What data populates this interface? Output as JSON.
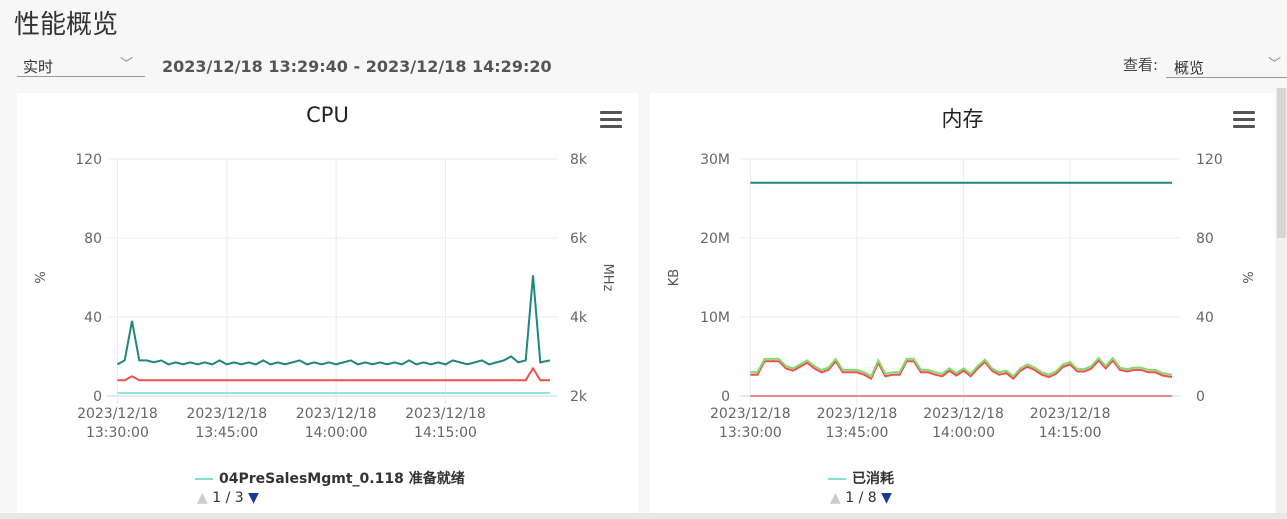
{
  "page": {
    "title": "性能概览",
    "mode_select": "实时",
    "time_range": "2023/12/18 13:29:40 - 2023/12/18 14:29:20",
    "view_label": "查看:",
    "view_select": "概览"
  },
  "icons": {
    "dropdown": "chevron-down-icon",
    "menu": "hamburger-menu-icon"
  },
  "chart_data": [
    {
      "type": "line",
      "title": "CPU",
      "ylabel": "%",
      "y2label": "MHz",
      "ylim": [
        0,
        120
      ],
      "y2lim": [
        2000,
        8000
      ],
      "yticks": [
        "0",
        "40",
        "80",
        "120"
      ],
      "y2ticks": [
        "2k",
        "4k",
        "6k",
        "8k"
      ],
      "xticks": [
        [
          "2023/12/18",
          "13:30:00"
        ],
        [
          "2023/12/18",
          "13:45:00"
        ],
        [
          "2023/12/18",
          "14:00:00"
        ],
        [
          "2023/12/18",
          "14:15:00"
        ]
      ],
      "xtick_times": [
        "13:30",
        "13:45",
        "14:00",
        "14:15"
      ],
      "xrange": [
        "13:29:40",
        "14:29:20"
      ],
      "x": [
        "13:30",
        "13:31",
        "13:32",
        "13:33",
        "13:34",
        "13:35",
        "13:36",
        "13:37",
        "13:38",
        "13:39",
        "13:40",
        "13:41",
        "13:42",
        "13:43",
        "13:44",
        "13:45",
        "13:46",
        "13:47",
        "13:48",
        "13:49",
        "13:50",
        "13:51",
        "13:52",
        "13:53",
        "13:54",
        "13:55",
        "13:56",
        "13:57",
        "13:58",
        "13:59",
        "14:00",
        "14:01",
        "14:02",
        "14:03",
        "14:04",
        "14:05",
        "14:06",
        "14:07",
        "14:08",
        "14:09",
        "14:10",
        "14:11",
        "14:12",
        "14:13",
        "14:14",
        "14:15",
        "14:16",
        "14:17",
        "14:18",
        "14:19",
        "14:20",
        "14:21",
        "14:22",
        "14:23",
        "14:24",
        "14:25",
        "14:26",
        "14:27",
        "14:28",
        "14:29"
      ],
      "series": [
        {
          "color": "#21877a",
          "values": [
            16,
            18,
            38,
            18,
            18,
            17,
            18,
            16,
            17,
            16,
            17,
            16,
            17,
            16,
            18,
            16,
            17,
            16,
            17,
            16,
            18,
            16,
            17,
            16,
            17,
            18,
            16,
            17,
            16,
            17,
            16,
            17,
            18,
            16,
            17,
            16,
            17,
            16,
            17,
            16,
            18,
            16,
            17,
            16,
            17,
            16,
            18,
            17,
            16,
            17,
            18,
            16,
            17,
            18,
            20,
            17,
            18,
            61,
            17,
            18
          ]
        },
        {
          "color": "#f04f4f",
          "values": [
            8,
            8,
            10,
            8,
            8,
            8,
            8,
            8,
            8,
            8,
            8,
            8,
            8,
            8,
            8,
            8,
            8,
            8,
            8,
            8,
            8,
            8,
            8,
            8,
            8,
            8,
            8,
            8,
            8,
            8,
            8,
            8,
            8,
            8,
            8,
            8,
            8,
            8,
            8,
            8,
            8,
            8,
            8,
            8,
            8,
            8,
            8,
            8,
            8,
            8,
            8,
            8,
            8,
            8,
            8,
            8,
            8,
            14,
            8,
            8
          ]
        },
        {
          "color": "#8fe6da",
          "values": [
            1.5,
            1.5,
            1.5,
            1.5,
            1.5,
            1.5,
            1.5,
            1.5,
            1.5,
            1.5,
            1.5,
            1.5,
            1.5,
            1.5,
            1.5,
            1.5,
            1.5,
            1.5,
            1.5,
            1.5,
            1.5,
            1.5,
            1.5,
            1.5,
            1.5,
            1.5,
            1.5,
            1.5,
            1.5,
            1.5,
            1.5,
            1.5,
            1.5,
            1.5,
            1.5,
            1.5,
            1.5,
            1.5,
            1.5,
            1.5,
            1.5,
            1.5,
            1.5,
            1.5,
            1.5,
            1.5,
            1.5,
            1.5,
            1.5,
            1.5,
            1.5,
            1.5,
            1.5,
            1.5,
            1.5,
            1.5,
            1.5,
            1.5,
            1.5,
            1.5
          ]
        }
      ],
      "legend": {
        "label": "04PreSalesMgmt_0.118 准备就绪",
        "color": "#7fe3d3",
        "page": "1 / 3"
      }
    },
    {
      "type": "line",
      "title": "内存",
      "ylabel": "KB",
      "y2label": "%",
      "ylim": [
        0,
        30000000
      ],
      "y2lim": [
        0,
        120
      ],
      "yticks": [
        "0",
        "10M",
        "20M",
        "30M"
      ],
      "y2ticks": [
        "0",
        "40",
        "80",
        "120"
      ],
      "xticks": [
        [
          "2023/12/18",
          "13:30:00"
        ],
        [
          "2023/12/18",
          "13:45:00"
        ],
        [
          "2023/12/18",
          "14:00:00"
        ],
        [
          "2023/12/18",
          "14:15:00"
        ]
      ],
      "xtick_times": [
        "13:30",
        "13:45",
        "14:00",
        "14:15"
      ],
      "xrange": [
        "13:29:40",
        "14:29:20"
      ],
      "series": [
        {
          "color": "#21877a",
          "values_M": [
            27,
            27,
            27,
            27,
            27,
            27,
            27,
            27,
            27,
            27,
            27,
            27,
            27,
            27,
            27,
            27,
            27,
            27,
            27,
            27,
            27,
            27,
            27,
            27,
            27,
            27,
            27,
            27,
            27,
            27,
            27,
            27,
            27,
            27,
            27,
            27,
            27,
            27,
            27,
            27,
            27,
            27,
            27,
            27,
            27,
            27,
            27,
            27,
            27,
            27,
            27,
            27,
            27,
            27,
            27,
            27,
            27,
            27,
            27,
            27
          ]
        },
        {
          "color": "#7fdc6a",
          "values_M": [
            3,
            3,
            4.7,
            4.7,
            4.7,
            3.8,
            3.5,
            4,
            4.5,
            3.8,
            3.3,
            3.6,
            4.7,
            3.3,
            3.3,
            3.3,
            3,
            2.5,
            4.5,
            2.8,
            3,
            3,
            4.7,
            4.7,
            3.3,
            3.3,
            3,
            2.8,
            3.5,
            2.9,
            3.5,
            2.8,
            3.8,
            4.6,
            3.5,
            3,
            3.2,
            2.5,
            3.5,
            4,
            3.6,
            3,
            2.7,
            3.1,
            4,
            4.3,
            3.4,
            3.4,
            3.8,
            4.8,
            3.8,
            4.8,
            3.6,
            3.4,
            3.6,
            3.6,
            3.3,
            3.3,
            2.9,
            2.7
          ]
        },
        {
          "color": "#f04f4f",
          "values_M": [
            2.7,
            2.7,
            4.4,
            4.4,
            4.4,
            3.5,
            3.2,
            3.7,
            4.2,
            3.5,
            3,
            3.3,
            4.4,
            3,
            3,
            3,
            2.7,
            2.2,
            4.2,
            2.5,
            2.7,
            2.7,
            4.4,
            4.4,
            3,
            3,
            2.7,
            2.5,
            3.2,
            2.6,
            3.2,
            2.5,
            3.5,
            4.3,
            3.2,
            2.7,
            2.9,
            2.2,
            3.2,
            3.7,
            3.3,
            2.7,
            2.4,
            2.8,
            3.7,
            4,
            3.1,
            3.1,
            3.5,
            4.5,
            3.5,
            4.5,
            3.3,
            3.1,
            3.3,
            3.3,
            3,
            3,
            2.6,
            2.4
          ]
        },
        {
          "color": "#e0908a",
          "values_M": [
            0,
            0,
            0,
            0,
            0,
            0,
            0,
            0,
            0,
            0,
            0,
            0,
            0,
            0,
            0,
            0,
            0,
            0,
            0,
            0,
            0,
            0,
            0,
            0,
            0,
            0,
            0,
            0,
            0,
            0,
            0,
            0,
            0,
            0,
            0,
            0,
            0,
            0,
            0,
            0,
            0,
            0,
            0,
            0,
            0,
            0,
            0,
            0,
            0,
            0,
            0,
            0,
            0,
            0,
            0,
            0,
            0,
            0,
            0,
            0
          ]
        }
      ],
      "legend": {
        "label": "已消耗",
        "color": "#7fe3d3",
        "page": "1 / 8"
      }
    }
  ]
}
